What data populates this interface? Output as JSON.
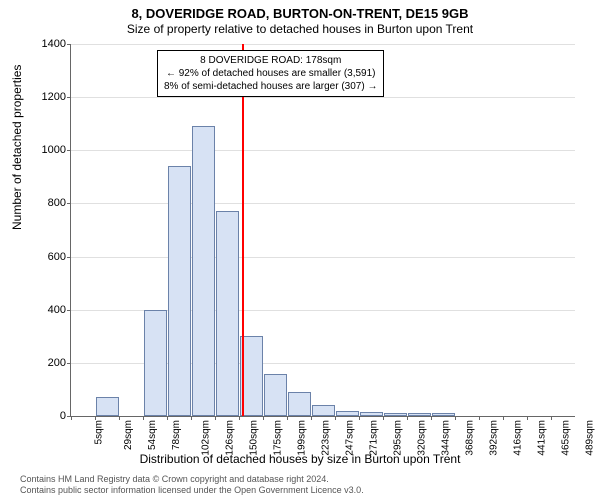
{
  "chart": {
    "type": "histogram",
    "title_main": "8, DOVERIDGE ROAD, BURTON-ON-TRENT, DE15 9GB",
    "title_sub": "Size of property relative to detached houses in Burton upon Trent",
    "ylabel": "Number of detached properties",
    "xlabel": "Distribution of detached houses by size in Burton upon Trent",
    "y_max": 1400,
    "y_ticks": [
      0,
      200,
      400,
      600,
      800,
      1000,
      1200,
      1400
    ],
    "x_tick_labels": [
      "5sqm",
      "29sqm",
      "54sqm",
      "78sqm",
      "102sqm",
      "126sqm",
      "150sqm",
      "175sqm",
      "199sqm",
      "223sqm",
      "247sqm",
      "271sqm",
      "295sqm",
      "320sqm",
      "344sqm",
      "368sqm",
      "392sqm",
      "416sqm",
      "441sqm",
      "465sqm",
      "489sqm"
    ],
    "bar_values": [
      0,
      70,
      0,
      400,
      940,
      1090,
      770,
      300,
      160,
      90,
      40,
      18,
      14,
      10,
      10,
      10,
      0,
      0,
      0,
      0,
      0
    ],
    "bar_fill": "#d7e2f4",
    "bar_border": "#6b82a9",
    "grid_color": "#e0e0e0",
    "ref_line_index": 7.12,
    "ref_line_color": "#ff0000",
    "annotation": {
      "line1": "8 DOVERIDGE ROAD: 178sqm",
      "line2": "← 92% of detached houses are smaller (3,591)",
      "line3": "8% of semi-detached houses are larger (307) →"
    },
    "footer_line1": "Contains HM Land Registry data © Crown copyright and database right 2024.",
    "footer_line2": "Contains public sector information licensed under the Open Government Licence v3.0."
  }
}
